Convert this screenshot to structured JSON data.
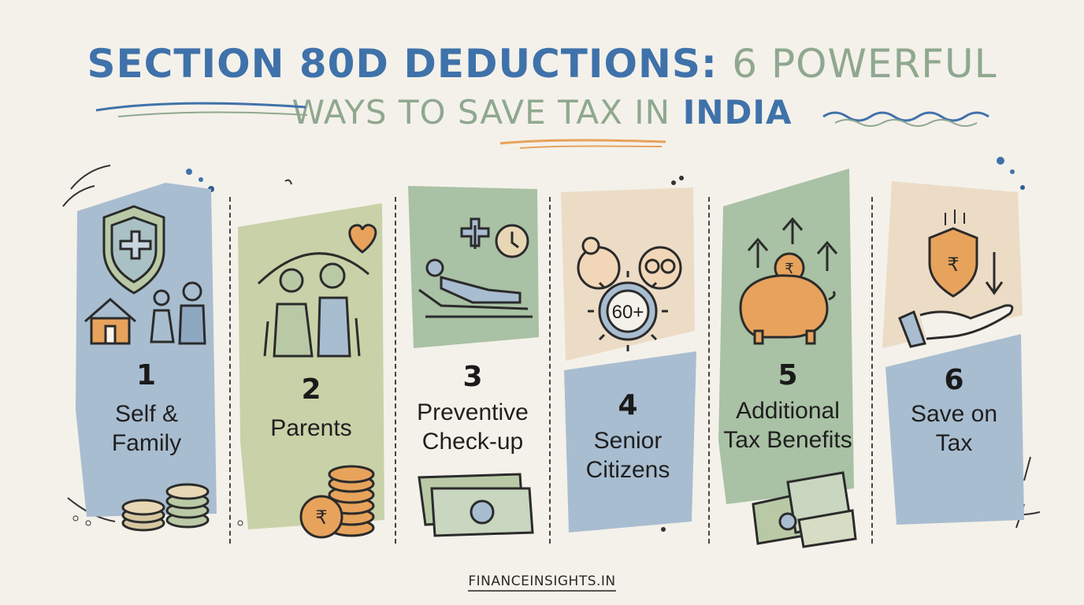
{
  "title": {
    "part1": "SECTION 80D DEDUCTIONS:",
    "part2": "6 POWERFUL",
    "line2_green": "WAYS TO SAVE TAX IN",
    "line2_blue": "INDIA"
  },
  "items": [
    {
      "number": "1",
      "label_line1": "Self &",
      "label_line2": "Family"
    },
    {
      "number": "2",
      "label_line1": "Parents",
      "label_line2": ""
    },
    {
      "number": "3",
      "label_line1": "Preventive",
      "label_line2": "Check-up"
    },
    {
      "number": "4",
      "label_line1": "Senior",
      "label_line2": "Citizens"
    },
    {
      "number": "5",
      "label_line1": "Additional",
      "label_line2": "Tax Benefits"
    },
    {
      "number": "6",
      "label_line1": "Save on",
      "label_line2": "Tax"
    }
  ],
  "badge_60": "60+",
  "rupee": "₹",
  "footer": "FINANCEINSIGHTS.IN",
  "colors": {
    "background": "#f4f1ea",
    "blue": "#3f72aa",
    "green_text": "#8fa88f",
    "panel_blue": "#a9bdd0",
    "panel_olive": "#c9d1a8",
    "panel_sage": "#a9c1a4",
    "panel_peach": "#ecdcc6",
    "orange": "#e7a35c"
  }
}
